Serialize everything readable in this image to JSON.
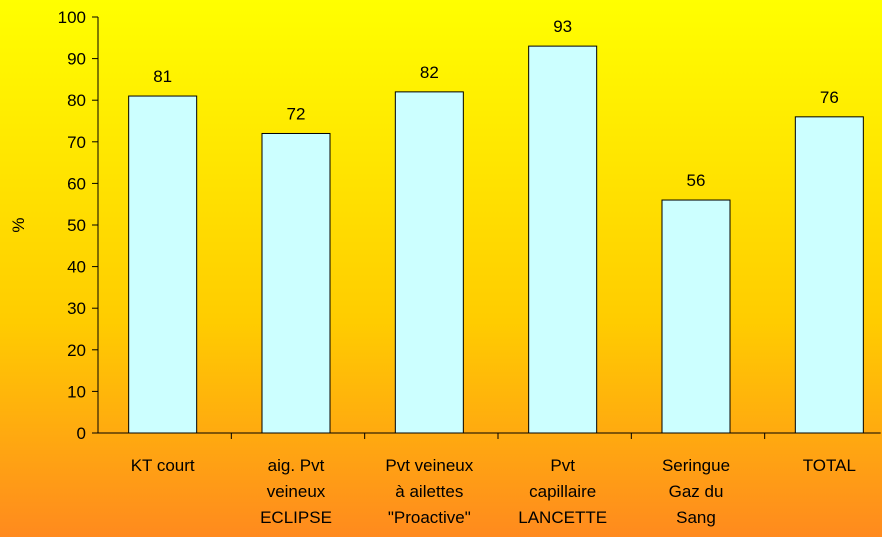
{
  "chart_data": {
    "type": "bar",
    "ylabel": "%",
    "categories": [
      "KT court",
      "aig. Pvt\nveineux\nECLIPSE",
      "Pvt veineux\nà ailettes\n\"Proactive\"",
      "Pvt\ncapillaire\nLANCETTE",
      "Seringue\nGaz du\nSang",
      "TOTAL"
    ],
    "values": [
      81,
      72,
      82,
      93,
      56,
      76
    ],
    "color": "#ccffff",
    "ylim": [
      0,
      100
    ],
    "yticks": [
      0,
      10,
      20,
      30,
      40,
      50,
      60,
      70,
      80,
      90,
      100
    ],
    "grid": false
  }
}
